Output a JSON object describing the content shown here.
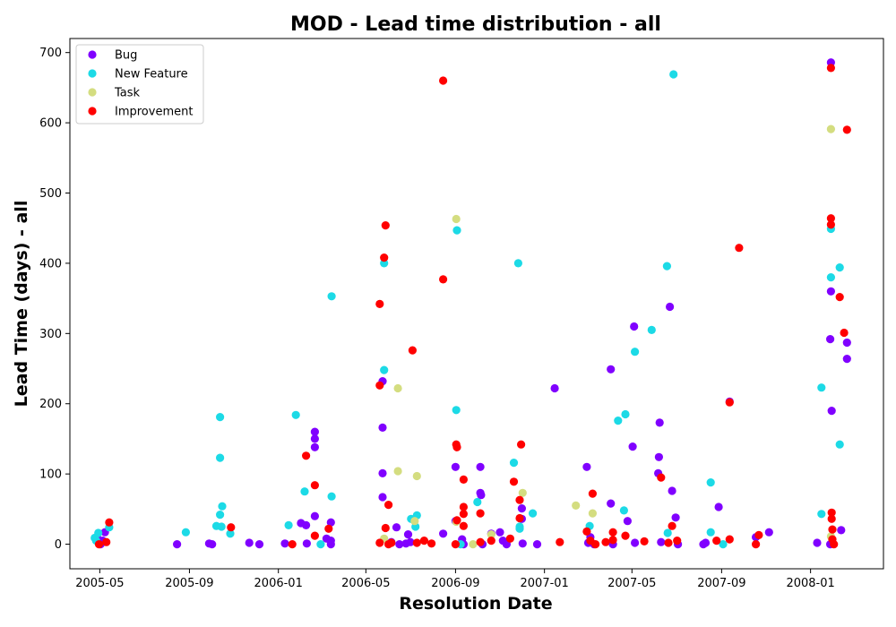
{
  "chart_data": {
    "type": "scatter",
    "title": "MOD - Lead time distribution - all",
    "xlabel": "Resolution Date",
    "ylabel": "Lead Time (days) - all",
    "xlim": [
      "2005-03-21",
      "2008-04-10"
    ],
    "ylim": [
      -35,
      720
    ],
    "x_ticks": [
      {
        "date": "2005-05-01",
        "label": "2005-05"
      },
      {
        "date": "2005-09-01",
        "label": "2005-09"
      },
      {
        "date": "2006-01-01",
        "label": "2006-01"
      },
      {
        "date": "2006-05-01",
        "label": "2006-05"
      },
      {
        "date": "2006-09-01",
        "label": "2006-09"
      },
      {
        "date": "2007-01-01",
        "label": "2007-01"
      },
      {
        "date": "2007-05-01",
        "label": "2007-05"
      },
      {
        "date": "2007-09-01",
        "label": "2007-09"
      },
      {
        "date": "2008-01-01",
        "label": "2008-01"
      }
    ],
    "y_ticks": [
      0,
      100,
      200,
      300,
      400,
      500,
      600,
      700
    ],
    "legend_position": "top-left",
    "series": [
      {
        "name": "Bug",
        "color": "#8000ff",
        "points": [
          [
            "2005-04-28",
            8
          ],
          [
            "2005-04-30",
            2
          ],
          [
            "2005-05-02",
            0
          ],
          [
            "2005-05-05",
            5
          ],
          [
            "2005-05-08",
            17
          ],
          [
            "2005-08-15",
            0
          ],
          [
            "2005-09-28",
            1
          ],
          [
            "2005-10-02",
            0
          ],
          [
            "2005-11-22",
            2
          ],
          [
            "2005-12-06",
            0
          ],
          [
            "2006-01-10",
            1
          ],
          [
            "2006-02-01",
            30
          ],
          [
            "2006-02-08",
            27
          ],
          [
            "2006-02-09",
            1
          ],
          [
            "2006-02-20",
            160
          ],
          [
            "2006-02-20",
            150
          ],
          [
            "2006-02-20",
            138
          ],
          [
            "2006-02-20",
            40
          ],
          [
            "2006-03-08",
            8
          ],
          [
            "2006-03-14",
            31
          ],
          [
            "2006-03-14",
            5
          ],
          [
            "2006-03-14",
            0
          ],
          [
            "2006-05-24",
            232
          ],
          [
            "2006-05-24",
            166
          ],
          [
            "2006-05-24",
            101
          ],
          [
            "2006-05-24",
            67
          ],
          [
            "2006-06-05",
            3
          ],
          [
            "2006-06-12",
            24
          ],
          [
            "2006-06-16",
            0
          ],
          [
            "2006-06-25",
            1
          ],
          [
            "2006-06-28",
            14
          ],
          [
            "2006-07-01",
            3
          ],
          [
            "2006-08-15",
            15
          ],
          [
            "2006-09-01",
            110
          ],
          [
            "2006-09-01",
            33
          ],
          [
            "2006-09-10",
            7
          ],
          [
            "2006-09-12",
            0
          ],
          [
            "2006-10-05",
            110
          ],
          [
            "2006-10-05",
            73
          ],
          [
            "2006-10-06",
            70
          ],
          [
            "2006-10-08",
            0
          ],
          [
            "2006-10-20",
            15
          ],
          [
            "2006-11-01",
            17
          ],
          [
            "2006-11-05",
            5
          ],
          [
            "2006-11-10",
            0
          ],
          [
            "2006-12-01",
            51
          ],
          [
            "2006-12-01",
            36
          ],
          [
            "2006-12-02",
            1
          ],
          [
            "2006-12-22",
            0
          ],
          [
            "2007-01-15",
            222
          ],
          [
            "2007-02-28",
            110
          ],
          [
            "2007-03-02",
            2
          ],
          [
            "2007-03-05",
            10
          ],
          [
            "2007-03-10",
            0
          ],
          [
            "2007-04-02",
            249
          ],
          [
            "2007-04-02",
            58
          ],
          [
            "2007-04-05",
            0
          ],
          [
            "2007-04-25",
            33
          ],
          [
            "2007-05-02",
            139
          ],
          [
            "2007-05-04",
            310
          ],
          [
            "2007-05-05",
            2
          ],
          [
            "2007-06-08",
            173
          ],
          [
            "2007-06-07",
            124
          ],
          [
            "2007-06-06",
            101
          ],
          [
            "2007-06-10",
            3
          ],
          [
            "2007-06-22",
            338
          ],
          [
            "2007-06-25",
            76
          ],
          [
            "2007-06-30",
            38
          ],
          [
            "2007-07-03",
            0
          ],
          [
            "2007-08-07",
            0
          ],
          [
            "2007-08-10",
            2
          ],
          [
            "2007-08-28",
            53
          ],
          [
            "2007-09-12",
            203
          ],
          [
            "2007-10-18",
            10
          ],
          [
            "2007-11-05",
            17
          ],
          [
            "2008-01-10",
            2
          ],
          [
            "2008-01-29",
            686
          ],
          [
            "2008-01-29",
            360
          ],
          [
            "2008-01-28",
            292
          ],
          [
            "2008-01-30",
            190
          ],
          [
            "2008-01-28",
            0
          ],
          [
            "2008-02-12",
            20
          ],
          [
            "2008-02-20",
            287
          ],
          [
            "2008-02-20",
            264
          ]
        ]
      },
      {
        "name": "New Feature",
        "color": "#1cdae6",
        "points": [
          [
            "2005-04-24",
            9
          ],
          [
            "2005-04-26",
            5
          ],
          [
            "2005-04-29",
            16
          ],
          [
            "2005-05-14",
            24
          ],
          [
            "2005-08-27",
            17
          ],
          [
            "2005-10-08",
            26
          ],
          [
            "2005-10-13",
            181
          ],
          [
            "2005-10-13",
            123
          ],
          [
            "2005-10-13",
            42
          ],
          [
            "2005-10-15",
            25
          ],
          [
            "2005-10-16",
            54
          ],
          [
            "2005-10-27",
            15
          ],
          [
            "2006-01-15",
            27
          ],
          [
            "2006-01-25",
            184
          ],
          [
            "2006-02-06",
            75
          ],
          [
            "2006-02-28",
            0
          ],
          [
            "2006-03-15",
            353
          ],
          [
            "2006-03-15",
            68
          ],
          [
            "2006-05-26",
            400
          ],
          [
            "2006-05-26",
            248
          ],
          [
            "2006-07-02",
            36
          ],
          [
            "2006-07-10",
            41
          ],
          [
            "2006-07-08",
            25
          ],
          [
            "2006-09-03",
            447
          ],
          [
            "2006-09-02",
            191
          ],
          [
            "2006-09-08",
            0
          ],
          [
            "2006-10-01",
            60
          ],
          [
            "2006-11-20",
            116
          ],
          [
            "2006-11-26",
            400
          ],
          [
            "2006-11-28",
            25
          ],
          [
            "2006-11-28",
            22
          ],
          [
            "2006-12-16",
            44
          ],
          [
            "2007-03-04",
            26
          ],
          [
            "2007-04-12",
            176
          ],
          [
            "2007-04-22",
            185
          ],
          [
            "2007-04-20",
            48
          ],
          [
            "2007-05-05",
            274
          ],
          [
            "2007-05-28",
            305
          ],
          [
            "2007-06-18",
            396
          ],
          [
            "2007-06-27",
            669
          ],
          [
            "2007-06-19",
            16
          ],
          [
            "2007-08-17",
            88
          ],
          [
            "2007-08-17",
            17
          ],
          [
            "2007-09-03",
            0
          ],
          [
            "2008-01-16",
            223
          ],
          [
            "2008-01-16",
            43
          ],
          [
            "2008-01-29",
            449
          ],
          [
            "2008-01-29",
            380
          ],
          [
            "2008-02-10",
            394
          ],
          [
            "2008-02-10",
            142
          ]
        ]
      },
      {
        "name": "Task",
        "color": "#d4dd80",
        "points": [
          [
            "2006-05-26",
            8
          ],
          [
            "2006-06-14",
            222
          ],
          [
            "2006-06-14",
            104
          ],
          [
            "2006-07-07",
            33
          ],
          [
            "2006-07-10",
            97
          ],
          [
            "2006-09-02",
            463
          ],
          [
            "2006-09-02",
            32
          ],
          [
            "2006-09-25",
            0
          ],
          [
            "2006-10-20",
            14
          ],
          [
            "2006-12-02",
            73
          ],
          [
            "2007-02-13",
            55
          ],
          [
            "2007-03-08",
            44
          ],
          [
            "2008-01-29",
            591
          ],
          [
            "2008-01-29",
            11
          ]
        ]
      },
      {
        "name": "Improvement",
        "color": "#ff0000",
        "points": [
          [
            "2005-04-30",
            0
          ],
          [
            "2005-05-10",
            3
          ],
          [
            "2005-05-14",
            31
          ],
          [
            "2005-10-28",
            24
          ],
          [
            "2006-01-20",
            0
          ],
          [
            "2006-02-08",
            126
          ],
          [
            "2006-02-20",
            84
          ],
          [
            "2006-02-20",
            12
          ],
          [
            "2006-03-11",
            22
          ],
          [
            "2006-05-20",
            342
          ],
          [
            "2006-05-20",
            226
          ],
          [
            "2006-05-26",
            408
          ],
          [
            "2006-05-28",
            454
          ],
          [
            "2006-05-28",
            23
          ],
          [
            "2006-05-20",
            2
          ],
          [
            "2006-06-01",
            56
          ],
          [
            "2006-06-01",
            0
          ],
          [
            "2006-06-05",
            2
          ],
          [
            "2006-07-04",
            276
          ],
          [
            "2006-07-10",
            2
          ],
          [
            "2006-07-20",
            5
          ],
          [
            "2006-07-30",
            1
          ],
          [
            "2006-08-15",
            660
          ],
          [
            "2006-08-15",
            377
          ],
          [
            "2006-09-02",
            142
          ],
          [
            "2006-09-03",
            138
          ],
          [
            "2006-09-03",
            34
          ],
          [
            "2006-09-12",
            92
          ],
          [
            "2006-09-12",
            53
          ],
          [
            "2006-09-12",
            43
          ],
          [
            "2006-09-12",
            26
          ],
          [
            "2006-09-01",
            0
          ],
          [
            "2006-10-05",
            44
          ],
          [
            "2006-10-05",
            3
          ],
          [
            "2006-10-20",
            5
          ],
          [
            "2006-11-15",
            8
          ],
          [
            "2006-11-20",
            89
          ],
          [
            "2006-11-28",
            63
          ],
          [
            "2006-11-28",
            37
          ],
          [
            "2006-11-30",
            142
          ],
          [
            "2007-01-22",
            3
          ],
          [
            "2007-02-28",
            18
          ],
          [
            "2007-03-08",
            72
          ],
          [
            "2007-03-05",
            5
          ],
          [
            "2007-03-12",
            0
          ],
          [
            "2007-03-26",
            3
          ],
          [
            "2007-04-05",
            17
          ],
          [
            "2007-04-05",
            6
          ],
          [
            "2007-04-22",
            12
          ],
          [
            "2007-05-18",
            4
          ],
          [
            "2007-06-10",
            95
          ],
          [
            "2007-06-20",
            2
          ],
          [
            "2007-06-25",
            26
          ],
          [
            "2007-07-02",
            5
          ],
          [
            "2007-08-25",
            5
          ],
          [
            "2007-09-12",
            202
          ],
          [
            "2007-09-12",
            7
          ],
          [
            "2007-09-25",
            422
          ],
          [
            "2007-10-18",
            0
          ],
          [
            "2007-10-22",
            13
          ],
          [
            "2008-01-29",
            678
          ],
          [
            "2008-01-29",
            464
          ],
          [
            "2008-01-29",
            455
          ],
          [
            "2008-01-30",
            45
          ],
          [
            "2008-01-30",
            36
          ],
          [
            "2008-01-31",
            21
          ],
          [
            "2008-01-31",
            7
          ],
          [
            "2008-02-02",
            0
          ],
          [
            "2008-02-10",
            352
          ],
          [
            "2008-02-16",
            301
          ],
          [
            "2008-02-20",
            590
          ]
        ]
      }
    ]
  }
}
